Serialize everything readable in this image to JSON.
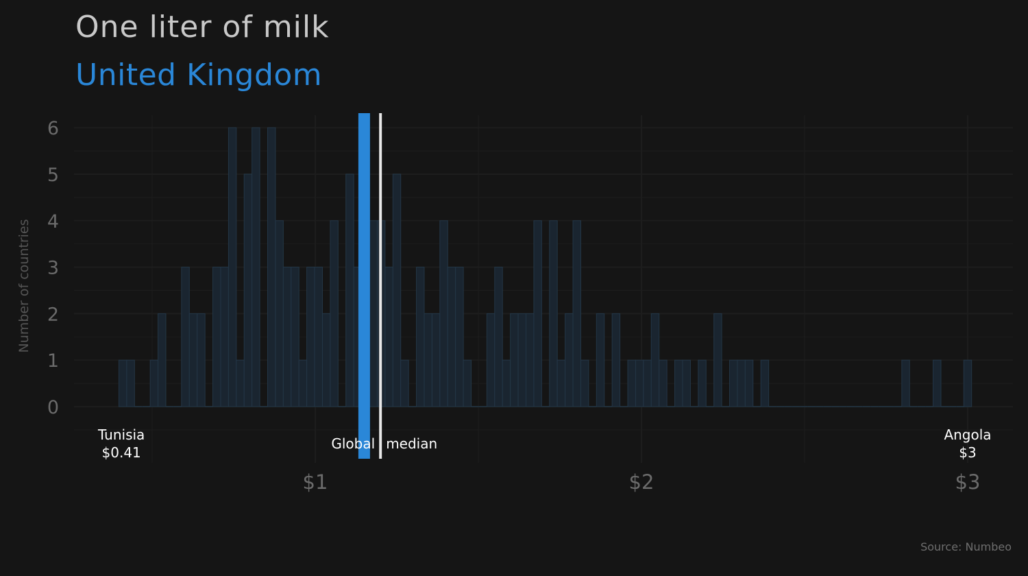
{
  "chart_data": {
    "type": "bar",
    "title": "One liter of milk",
    "subtitle": "United Kingdom",
    "ylabel": "Number of countries",
    "xlabel": "",
    "source": "Source: Numbeo",
    "x_ticks": [
      {
        "value": 1,
        "label": "$1"
      },
      {
        "value": 2,
        "label": "$2"
      },
      {
        "value": 3,
        "label": "$3"
      }
    ],
    "y_ticks": [
      0,
      1,
      2,
      3,
      4,
      5,
      6
    ],
    "xlim": [
      0.27,
      3.1
    ],
    "ylim": [
      -0.5,
      6.2
    ],
    "bin_width": 0.024,
    "bins": [
      {
        "x": 0.41,
        "count": 1
      },
      {
        "x": 0.434,
        "count": 1
      },
      {
        "x": 0.458,
        "count": 0
      },
      {
        "x": 0.482,
        "count": 0
      },
      {
        "x": 0.506,
        "count": 1
      },
      {
        "x": 0.53,
        "count": 2
      },
      {
        "x": 0.554,
        "count": 0
      },
      {
        "x": 0.578,
        "count": 0
      },
      {
        "x": 0.602,
        "count": 3
      },
      {
        "x": 0.626,
        "count": 2
      },
      {
        "x": 0.65,
        "count": 2
      },
      {
        "x": 0.674,
        "count": 0
      },
      {
        "x": 0.698,
        "count": 3
      },
      {
        "x": 0.722,
        "count": 3
      },
      {
        "x": 0.746,
        "count": 6
      },
      {
        "x": 0.77,
        "count": 1
      },
      {
        "x": 0.794,
        "count": 5
      },
      {
        "x": 0.818,
        "count": 6
      },
      {
        "x": 0.842,
        "count": 0
      },
      {
        "x": 0.866,
        "count": 6
      },
      {
        "x": 0.89,
        "count": 4
      },
      {
        "x": 0.914,
        "count": 3
      },
      {
        "x": 0.938,
        "count": 3
      },
      {
        "x": 0.962,
        "count": 1
      },
      {
        "x": 0.986,
        "count": 3
      },
      {
        "x": 1.01,
        "count": 3
      },
      {
        "x": 1.034,
        "count": 2
      },
      {
        "x": 1.058,
        "count": 4
      },
      {
        "x": 1.082,
        "count": 0
      },
      {
        "x": 1.106,
        "count": 5
      },
      {
        "x": 1.13,
        "count": 3
      },
      {
        "x": 1.154,
        "count": 6
      },
      {
        "x": 1.178,
        "count": 4
      },
      {
        "x": 1.202,
        "count": 4
      },
      {
        "x": 1.226,
        "count": 3
      },
      {
        "x": 1.25,
        "count": 5
      },
      {
        "x": 1.274,
        "count": 1
      },
      {
        "x": 1.298,
        "count": 0
      },
      {
        "x": 1.322,
        "count": 3
      },
      {
        "x": 1.346,
        "count": 2
      },
      {
        "x": 1.37,
        "count": 2
      },
      {
        "x": 1.394,
        "count": 4
      },
      {
        "x": 1.418,
        "count": 3
      },
      {
        "x": 1.442,
        "count": 3
      },
      {
        "x": 1.466,
        "count": 1
      },
      {
        "x": 1.49,
        "count": 0
      },
      {
        "x": 1.514,
        "count": 0
      },
      {
        "x": 1.538,
        "count": 2
      },
      {
        "x": 1.562,
        "count": 3
      },
      {
        "x": 1.586,
        "count": 1
      },
      {
        "x": 1.61,
        "count": 2
      },
      {
        "x": 1.634,
        "count": 2
      },
      {
        "x": 1.658,
        "count": 2
      },
      {
        "x": 1.682,
        "count": 4
      },
      {
        "x": 1.706,
        "count": 0
      },
      {
        "x": 1.73,
        "count": 4
      },
      {
        "x": 1.754,
        "count": 1
      },
      {
        "x": 1.778,
        "count": 2
      },
      {
        "x": 1.802,
        "count": 4
      },
      {
        "x": 1.826,
        "count": 1
      },
      {
        "x": 1.85,
        "count": 0
      },
      {
        "x": 1.874,
        "count": 2
      },
      {
        "x": 1.898,
        "count": 0
      },
      {
        "x": 1.922,
        "count": 2
      },
      {
        "x": 1.946,
        "count": 0
      },
      {
        "x": 1.97,
        "count": 1
      },
      {
        "x": 1.994,
        "count": 1
      },
      {
        "x": 2.018,
        "count": 1
      },
      {
        "x": 2.042,
        "count": 2
      },
      {
        "x": 2.066,
        "count": 1
      },
      {
        "x": 2.09,
        "count": 0
      },
      {
        "x": 2.114,
        "count": 1
      },
      {
        "x": 2.138,
        "count": 1
      },
      {
        "x": 2.162,
        "count": 0
      },
      {
        "x": 2.186,
        "count": 1
      },
      {
        "x": 2.21,
        "count": 0
      },
      {
        "x": 2.234,
        "count": 2
      },
      {
        "x": 2.258,
        "count": 0
      },
      {
        "x": 2.282,
        "count": 1
      },
      {
        "x": 2.306,
        "count": 1
      },
      {
        "x": 2.33,
        "count": 1
      },
      {
        "x": 2.354,
        "count": 0
      },
      {
        "x": 2.378,
        "count": 1
      },
      {
        "x": 2.402,
        "count": 0
      },
      {
        "x": 2.426,
        "count": 0
      },
      {
        "x": 2.45,
        "count": 0
      },
      {
        "x": 2.474,
        "count": 0
      },
      {
        "x": 2.498,
        "count": 0
      },
      {
        "x": 2.522,
        "count": 0
      },
      {
        "x": 2.546,
        "count": 0
      },
      {
        "x": 2.57,
        "count": 0
      },
      {
        "x": 2.594,
        "count": 0
      },
      {
        "x": 2.618,
        "count": 0
      },
      {
        "x": 2.642,
        "count": 0
      },
      {
        "x": 2.666,
        "count": 0
      },
      {
        "x": 2.69,
        "count": 0
      },
      {
        "x": 2.714,
        "count": 0
      },
      {
        "x": 2.738,
        "count": 0
      },
      {
        "x": 2.762,
        "count": 0
      },
      {
        "x": 2.786,
        "count": 0
      },
      {
        "x": 2.81,
        "count": 1
      },
      {
        "x": 2.834,
        "count": 0
      },
      {
        "x": 2.858,
        "count": 0
      },
      {
        "x": 2.882,
        "count": 0
      },
      {
        "x": 2.906,
        "count": 1
      },
      {
        "x": 2.93,
        "count": 0
      },
      {
        "x": 2.954,
        "count": 0
      },
      {
        "x": 2.978,
        "count": 0
      },
      {
        "x": 3.0,
        "count": 1
      }
    ],
    "highlight": {
      "name": "United Kingdom",
      "value": 1.15,
      "color": "#2a87d8"
    },
    "global_median": {
      "label_left": "Global",
      "label_right": "median",
      "value": 1.2,
      "color": "#e8e8e8"
    },
    "annotations": [
      {
        "name": "Tunisia",
        "price": "$0.41",
        "value": 0.41
      },
      {
        "name": "Angola",
        "price": "$3",
        "value": 3.0
      }
    ],
    "colors": {
      "background": "#151515",
      "bar_fill": "#1a2530",
      "bar_stroke": "#233646",
      "grid": "#1d1d1d",
      "tick_label": "#6b6b6b",
      "ylabel": "#555555",
      "annotation": "#ffffff"
    },
    "grid": true
  }
}
